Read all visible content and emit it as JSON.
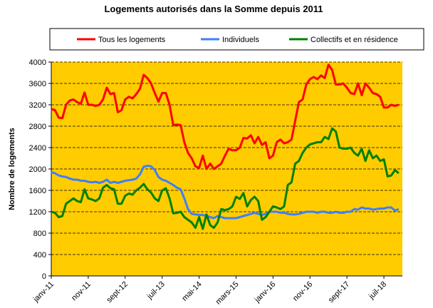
{
  "chart_data": {
    "type": "line",
    "title": "Logements autorisés dans la Somme depuis 2011",
    "y_label": "Nombre de logements",
    "categories": [
      "janv-11",
      null,
      null,
      null,
      null,
      null,
      null,
      null,
      null,
      null,
      "nov-11",
      null,
      null,
      null,
      null,
      null,
      null,
      null,
      null,
      null,
      "sept-12",
      null,
      null,
      null,
      null,
      null,
      null,
      null,
      null,
      null,
      "juil-13",
      null,
      null,
      null,
      null,
      null,
      null,
      null,
      null,
      null,
      "mai-14",
      null,
      null,
      null,
      null,
      null,
      null,
      null,
      null,
      null,
      "mars-15",
      null,
      null,
      null,
      null,
      null,
      null,
      null,
      null,
      null,
      "janv-16",
      null,
      null,
      null,
      null,
      null,
      null,
      null,
      null,
      null,
      "nov-16",
      null,
      null,
      null,
      null,
      null,
      null,
      null,
      null,
      null,
      "sept-17",
      null,
      null,
      null,
      null,
      null,
      null,
      null,
      null,
      null,
      "juil-18",
      null,
      null,
      null,
      null
    ],
    "series": [
      {
        "name": "Tous les logements",
        "color": "#ff0000",
        "values": [
          3120,
          3100,
          2960,
          2950,
          3200,
          3280,
          3300,
          3250,
          3220,
          3430,
          3200,
          3200,
          3180,
          3200,
          3300,
          3520,
          3400,
          3420,
          3060,
          3100,
          3300,
          3350,
          3320,
          3400,
          3500,
          3760,
          3700,
          3600,
          3420,
          3260,
          3420,
          3420,
          3200,
          2820,
          2830,
          2820,
          2500,
          2300,
          2200,
          2050,
          2020,
          2250,
          2000,
          2100,
          2000,
          2050,
          2100,
          2250,
          2380,
          2350,
          2350,
          2400,
          2580,
          2570,
          2630,
          2480,
          2600,
          2450,
          2500,
          2200,
          2250,
          2500,
          2550,
          2480,
          2500,
          2550,
          2900,
          3250,
          3300,
          3580,
          3680,
          3720,
          3680,
          3750,
          3700,
          3950,
          3850,
          3580,
          3580,
          3600,
          3520,
          3420,
          3400,
          3600,
          3380,
          3600,
          3520,
          3420,
          3400,
          3350,
          3150,
          3150,
          3200,
          3180,
          3200
        ]
      },
      {
        "name": "Individuels",
        "color": "#3f7fff",
        "values": [
          1940,
          1920,
          1880,
          1860,
          1850,
          1820,
          1800,
          1800,
          1780,
          1780,
          1760,
          1750,
          1760,
          1740,
          1760,
          1800,
          1740,
          1760,
          1740,
          1760,
          1780,
          1790,
          1800,
          1820,
          1900,
          2040,
          2060,
          2050,
          1980,
          1850,
          1800,
          1780,
          1740,
          1700,
          1650,
          1620,
          1450,
          1250,
          1160,
          1150,
          1140,
          1140,
          1120,
          1100,
          1080,
          1120,
          1100,
          1080,
          1080,
          1080,
          1080,
          1100,
          1120,
          1140,
          1160,
          1180,
          1160,
          1140,
          1160,
          1200,
          1200,
          1200,
          1180,
          1180,
          1160,
          1150,
          1150,
          1160,
          1180,
          1200,
          1200,
          1200,
          1180,
          1200,
          1200,
          1180,
          1180,
          1200,
          1180,
          1180,
          1200,
          1200,
          1250,
          1240,
          1280,
          1260,
          1260,
          1240,
          1250,
          1260,
          1260,
          1280,
          1280,
          1220,
          1250
        ]
      },
      {
        "name": "Collectifs et en résidence",
        "color": "#008000",
        "values": [
          1200,
          1180,
          1100,
          1120,
          1350,
          1400,
          1450,
          1400,
          1380,
          1620,
          1450,
          1430,
          1400,
          1450,
          1650,
          1700,
          1640,
          1620,
          1350,
          1350,
          1500,
          1540,
          1520,
          1600,
          1650,
          1720,
          1620,
          1560,
          1450,
          1400,
          1600,
          1640,
          1450,
          1170,
          1180,
          1200,
          1100,
          1050,
          1000,
          900,
          1100,
          880,
          1150,
          950,
          900,
          1000,
          1250,
          1230,
          1250,
          1300,
          1480,
          1440,
          1550,
          1300,
          1420,
          1480,
          1400,
          1050,
          1100,
          1200,
          1300,
          1280,
          1250,
          1300,
          1700,
          1750,
          2100,
          2150,
          2300,
          2400,
          2460,
          2480,
          2500,
          2500,
          2600,
          2560,
          2760,
          2700,
          2400,
          2380,
          2380,
          2400,
          2300,
          2250,
          2380,
          2150,
          2350,
          2200,
          2250,
          2150,
          2180,
          1860,
          1880,
          1980,
          1920
        ]
      }
    ],
    "ylim": [
      0,
      4000
    ],
    "yticks": [
      0,
      400,
      800,
      1200,
      1600,
      2000,
      2400,
      2800,
      3200,
      3600,
      4000
    ],
    "grid": true,
    "plot_background": "#ffcc00"
  }
}
